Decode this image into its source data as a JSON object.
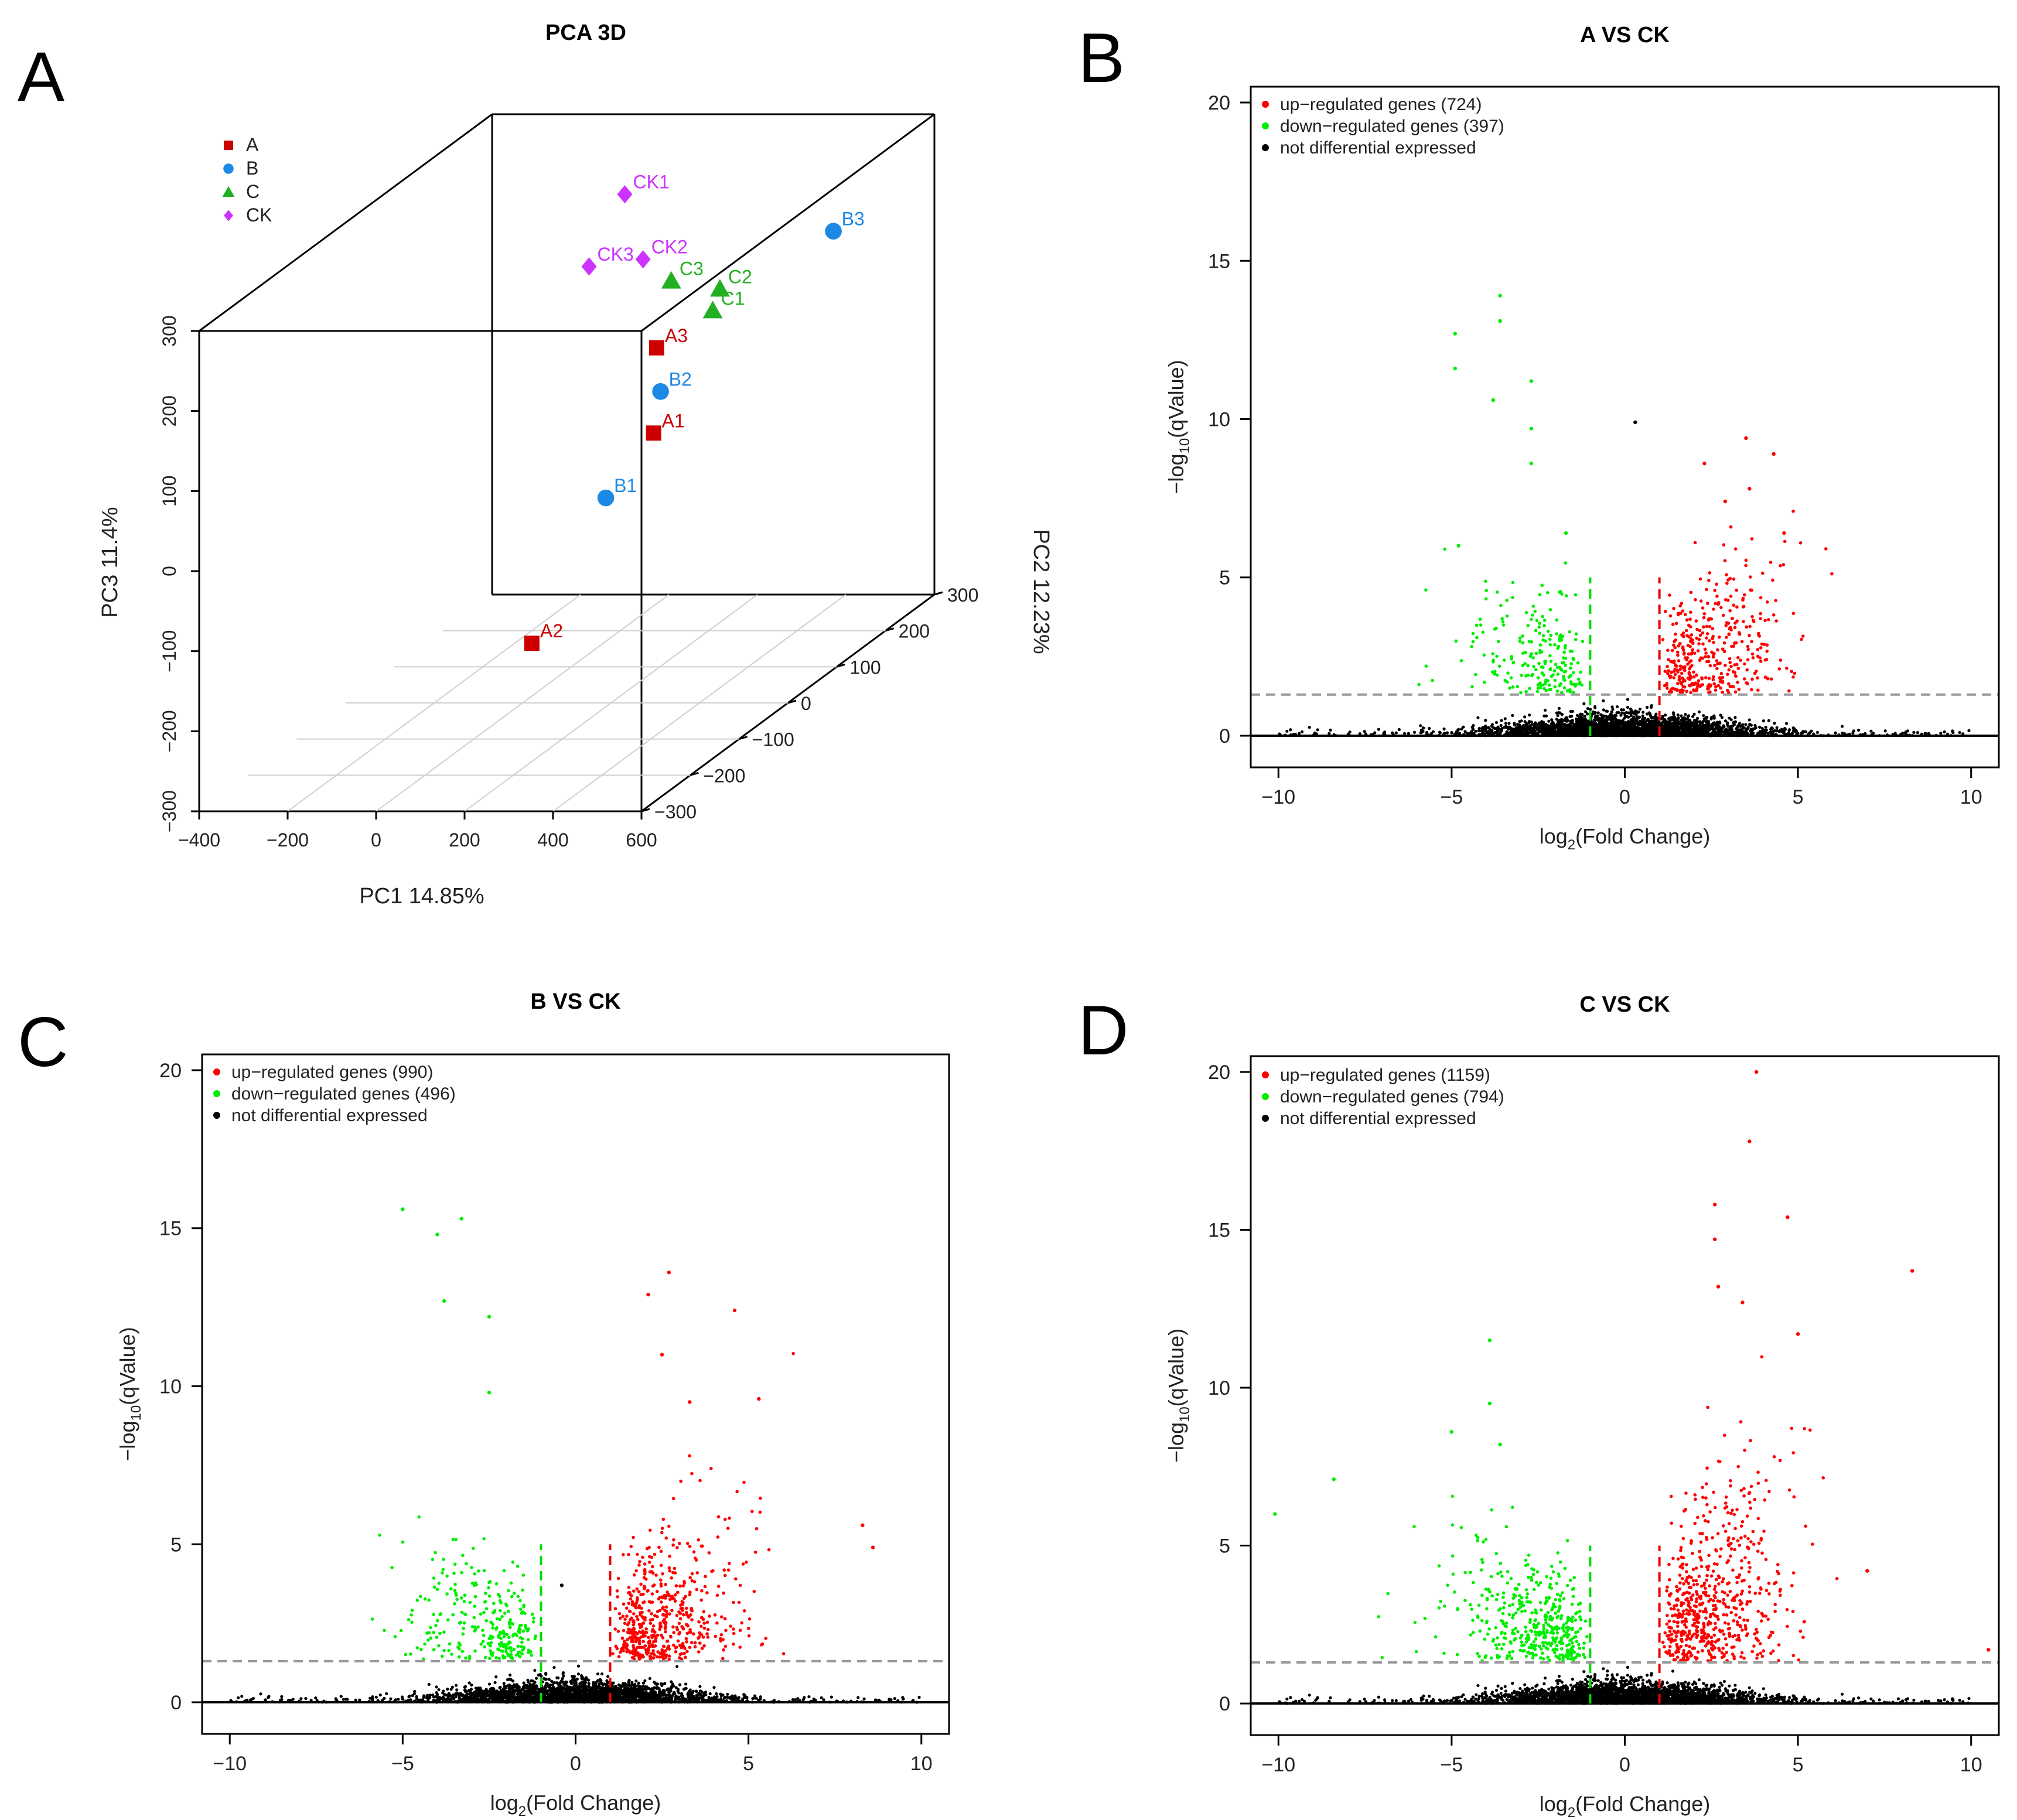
{
  "panels": [
    {
      "letter": "A",
      "chart_data": {
        "type": "scatter",
        "title": "PCA 3D",
        "xlabel": "PC1 14.85%",
        "ylabel": "PC3 11.4%",
        "zlabel": "PC2 12.23%",
        "x_ticks": [
          "−400",
          "−200",
          "0",
          "200",
          "400",
          "600"
        ],
        "y_ticks": [
          "−300",
          "−200",
          "−100",
          "0",
          "100",
          "200",
          "300"
        ],
        "z_ticks": [
          "−300",
          "−200",
          "−100",
          "0",
          "100",
          "200",
          "300"
        ],
        "xlim": [
          -400,
          600
        ],
        "ylim": [
          -300,
          300
        ],
        "zlim": [
          -300,
          300
        ],
        "grid": true,
        "legend_position": "top-left",
        "series": [
          {
            "name": "A",
            "color": "#cc0000",
            "marker": "square"
          },
          {
            "name": "B",
            "color": "#1e88e5",
            "marker": "circle"
          },
          {
            "name": "C",
            "color": "#22b022",
            "marker": "triangle"
          },
          {
            "name": "CK",
            "color": "#cc33ff",
            "marker": "diamond"
          }
        ],
        "points": [
          {
            "label": "CK1",
            "series": "CK",
            "pc1": -100,
            "pc3": 200,
            "pc2": 300
          },
          {
            "label": "CK2",
            "series": "CK",
            "pc1": 140,
            "pc3": 200,
            "pc2": 120
          },
          {
            "label": "CK3",
            "series": "CK",
            "pc1": 40,
            "pc3": 200,
            "pc2": 100
          },
          {
            "label": "C1",
            "series": "C",
            "pc1": 430,
            "pc3": 190,
            "pc2": 0
          },
          {
            "label": "C2",
            "series": "C",
            "pc1": 380,
            "pc3": 190,
            "pc2": 60
          },
          {
            "label": "C3",
            "series": "C",
            "pc1": 270,
            "pc3": 200,
            "pc2": 60
          },
          {
            "label": "B3",
            "series": "B",
            "pc1": 460,
            "pc3": 190,
            "pc2": 220
          },
          {
            "label": "B2",
            "series": "B",
            "pc1": 290,
            "pc3": 80,
            "pc2": 20
          },
          {
            "label": "B1",
            "series": "B",
            "pc1": 100,
            "pc3": -80,
            "pc2": 80
          },
          {
            "label": "A1",
            "series": "A",
            "pc1": 230,
            "pc3": 10,
            "pc2": 60
          },
          {
            "label": "A2",
            "series": "A",
            "pc1": 10,
            "pc3": -230,
            "pc2": 10
          },
          {
            "label": "A3",
            "series": "A",
            "pc1": 270,
            "pc3": 130,
            "pc2": 30
          }
        ]
      }
    },
    {
      "letter": "B",
      "chart_data": {
        "type": "scatter",
        "title": "A VS CK",
        "xlabel_main": "log",
        "xlabel_sub": "2",
        "xlabel_tail": "(Fold Change)",
        "ylabel_main": "−log",
        "ylabel_sub": "10",
        "ylabel_tail": "(qValue)",
        "xlim": [
          -10.8,
          10.8
        ],
        "ylim": [
          -1,
          20.5
        ],
        "x_ticks": [
          -10,
          -5,
          0,
          5,
          10
        ],
        "x_tick_labels": [
          "−10",
          "−5",
          "0",
          "5",
          "10"
        ],
        "y_ticks": [
          0,
          5,
          10,
          15,
          20
        ],
        "y_tick_labels": [
          "0",
          "5",
          "10",
          "15",
          "20"
        ],
        "threshold_q": 1.3,
        "threshold_fc": 1,
        "legend_position": "top-left",
        "legend": [
          {
            "label": "up−regulated genes (724)",
            "color": "#ff0000"
          },
          {
            "label": "down−regulated genes (397)",
            "color": "#00ee00"
          },
          {
            "label": "not differential expressed",
            "color": "#000000"
          }
        ],
        "series": [
          {
            "name": "up−regulated genes",
            "count": 724,
            "color": "#ff0000"
          },
          {
            "name": "down−regulated genes",
            "count": 397,
            "color": "#00ee00"
          },
          {
            "name": "not differential expressed",
            "color": "#000000"
          }
        ],
        "highlights": [
          {
            "x": -3.6,
            "y": 13.9,
            "group": "down"
          },
          {
            "x": -3.6,
            "y": 13.1,
            "group": "down"
          },
          {
            "x": -4.9,
            "y": 12.7,
            "group": "down"
          },
          {
            "x": -4.9,
            "y": 11.6,
            "group": "down"
          },
          {
            "x": -2.7,
            "y": 11.2,
            "group": "down"
          },
          {
            "x": -3.8,
            "y": 10.6,
            "group": "down"
          },
          {
            "x": -2.7,
            "y": 9.7,
            "group": "down"
          },
          {
            "x": -2.7,
            "y": 8.6,
            "group": "down"
          },
          {
            "x": 0.3,
            "y": 9.9,
            "group": "ns"
          },
          {
            "x": 3.5,
            "y": 9.4,
            "group": "up"
          },
          {
            "x": 4.3,
            "y": 8.9,
            "group": "up"
          },
          {
            "x": 2.3,
            "y": 8.6,
            "group": "up"
          },
          {
            "x": 3.6,
            "y": 7.8,
            "group": "up"
          },
          {
            "x": 2.9,
            "y": 7.4,
            "group": "up"
          },
          {
            "x": 4.6,
            "y": 6.4,
            "group": "up"
          },
          {
            "x": -1.7,
            "y": 6.4,
            "group": "down"
          },
          {
            "x": -4.8,
            "y": 6.0,
            "group": "down"
          }
        ]
      }
    },
    {
      "letter": "C",
      "chart_data": {
        "type": "scatter",
        "title": "B VS CK",
        "xlabel_main": "log",
        "xlabel_sub": "2",
        "xlabel_tail": "(Fold Change)",
        "ylabel_main": "−log",
        "ylabel_sub": "10",
        "ylabel_tail": "(qValue)",
        "xlim": [
          -10.8,
          10.8
        ],
        "ylim": [
          -1,
          20.5
        ],
        "x_ticks": [
          -10,
          -5,
          0,
          5,
          10
        ],
        "x_tick_labels": [
          "−10",
          "−5",
          "0",
          "5",
          "10"
        ],
        "y_ticks": [
          0,
          5,
          10,
          15,
          20
        ],
        "y_tick_labels": [
          "0",
          "5",
          "10",
          "15",
          "20"
        ],
        "threshold_q": 1.3,
        "threshold_fc": 1,
        "legend_position": "top-left",
        "legend": [
          {
            "label": "up−regulated genes (990)",
            "color": "#ff0000"
          },
          {
            "label": "down−regulated genes (496)",
            "color": "#00ee00"
          },
          {
            "label": "not differential expressed",
            "color": "#000000"
          }
        ],
        "series": [
          {
            "name": "up−regulated genes",
            "count": 990,
            "color": "#ff0000"
          },
          {
            "name": "down−regulated genes",
            "count": 496,
            "color": "#00ee00"
          },
          {
            "name": "not differential expressed",
            "color": "#000000"
          }
        ],
        "highlights": [
          {
            "x": -5.0,
            "y": 15.6,
            "group": "down"
          },
          {
            "x": -3.3,
            "y": 15.3,
            "group": "down"
          },
          {
            "x": -4.0,
            "y": 14.8,
            "group": "down"
          },
          {
            "x": -3.8,
            "y": 12.7,
            "group": "down"
          },
          {
            "x": -2.5,
            "y": 12.2,
            "group": "down"
          },
          {
            "x": -2.5,
            "y": 9.8,
            "group": "down"
          },
          {
            "x": 2.7,
            "y": 13.6,
            "group": "up"
          },
          {
            "x": 2.1,
            "y": 12.9,
            "group": "up"
          },
          {
            "x": 4.6,
            "y": 12.4,
            "group": "up"
          },
          {
            "x": 2.5,
            "y": 11.0,
            "group": "up"
          },
          {
            "x": 3.3,
            "y": 9.5,
            "group": "up"
          },
          {
            "x": 5.3,
            "y": 9.6,
            "group": "up"
          },
          {
            "x": 8.3,
            "y": 5.6,
            "group": "up"
          },
          {
            "x": 8.6,
            "y": 4.9,
            "group": "up"
          },
          {
            "x": -0.4,
            "y": 3.7,
            "group": "ns"
          }
        ]
      }
    },
    {
      "letter": "D",
      "chart_data": {
        "type": "scatter",
        "title": "C VS CK",
        "xlabel_main": "log",
        "xlabel_sub": "2",
        "xlabel_tail": "(Fold Change)",
        "ylabel_main": "−log",
        "ylabel_sub": "10",
        "ylabel_tail": "(qValue)",
        "xlim": [
          -10.8,
          10.8
        ],
        "ylim": [
          -1,
          20.5
        ],
        "x_ticks": [
          -10,
          -5,
          0,
          5,
          10
        ],
        "x_tick_labels": [
          "−10",
          "−5",
          "0",
          "5",
          "10"
        ],
        "y_ticks": [
          0,
          5,
          10,
          15,
          20
        ],
        "y_tick_labels": [
          "0",
          "5",
          "10",
          "15",
          "20"
        ],
        "threshold_q": 1.3,
        "threshold_fc": 1,
        "legend_position": "top-left",
        "legend": [
          {
            "label": "up−regulated genes (1159)",
            "color": "#ff0000"
          },
          {
            "label": "down−regulated genes (794)",
            "color": "#00ee00"
          },
          {
            "label": "not differential expressed",
            "color": "#000000"
          }
        ],
        "series": [
          {
            "name": "up−regulated genes",
            "count": 1159,
            "color": "#ff0000"
          },
          {
            "name": "down−regulated genes",
            "count": 794,
            "color": "#00ee00"
          },
          {
            "name": "not differential expressed",
            "color": "#000000"
          }
        ],
        "highlights": [
          {
            "x": 3.8,
            "y": 20.0,
            "group": "up"
          },
          {
            "x": 3.6,
            "y": 17.8,
            "group": "up"
          },
          {
            "x": 2.6,
            "y": 15.8,
            "group": "up"
          },
          {
            "x": 4.7,
            "y": 15.4,
            "group": "up"
          },
          {
            "x": 2.6,
            "y": 14.7,
            "group": "up"
          },
          {
            "x": 8.3,
            "y": 13.7,
            "group": "up"
          },
          {
            "x": 2.7,
            "y": 13.2,
            "group": "up"
          },
          {
            "x": 3.4,
            "y": 12.7,
            "group": "up"
          },
          {
            "x": 5.0,
            "y": 11.7,
            "group": "up"
          },
          {
            "x": -3.9,
            "y": 11.5,
            "group": "down"
          },
          {
            "x": -3.9,
            "y": 9.5,
            "group": "down"
          },
          {
            "x": -5.0,
            "y": 8.6,
            "group": "down"
          },
          {
            "x": -3.6,
            "y": 8.2,
            "group": "down"
          },
          {
            "x": -8.4,
            "y": 7.1,
            "group": "down"
          },
          {
            "x": -10.1,
            "y": 6.0,
            "group": "down"
          },
          {
            "x": 7.0,
            "y": 4.2,
            "group": "up"
          },
          {
            "x": 10.5,
            "y": 1.7,
            "group": "up"
          }
        ]
      }
    }
  ]
}
